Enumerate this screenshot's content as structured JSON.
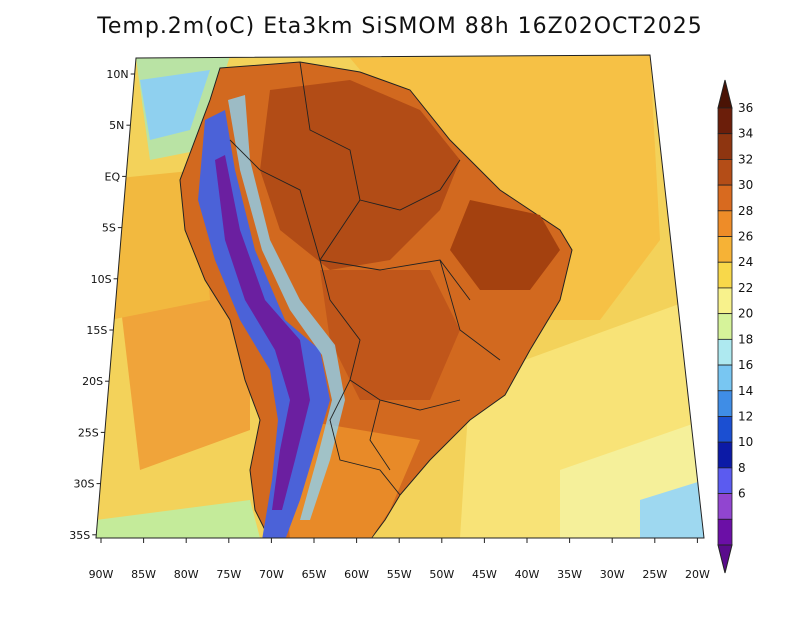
{
  "title": "Temp.2m(oC) Eta3km SiSMOM 88h 16Z02OCT2025",
  "latitude_labels": [
    "10N",
    "5N",
    "EQ",
    "5S",
    "10S",
    "15S",
    "20S",
    "25S",
    "30S",
    "35S"
  ],
  "longitude_labels": [
    "90W",
    "85W",
    "80W",
    "75W",
    "70W",
    "65W",
    "60W",
    "55W",
    "50W",
    "45W",
    "40W",
    "35W",
    "30W",
    "25W",
    "20W"
  ],
  "colorbar": {
    "labels": [
      "36",
      "34",
      "32",
      "30",
      "28",
      "26",
      "24",
      "22",
      "20",
      "18",
      "16",
      "14",
      "12",
      "10",
      "8",
      "6"
    ],
    "colors": [
      "#6b1e0a",
      "#8e3510",
      "#b44d17",
      "#d86a1f",
      "#ee8c28",
      "#f6b236",
      "#f8d84a",
      "#f8f28c",
      "#d6f39a",
      "#aee9f0",
      "#78c6f2",
      "#3f8de6",
      "#1b4fd2",
      "#0c1aa6",
      "#5b5bf0",
      "#9145d0",
      "#6b0fa6"
    ],
    "max_arrow_color": "#4a1305",
    "min_arrow_color": "#5a0c8c"
  },
  "colors": {
    "ocean_north_pacific": "#f3d25a",
    "ocean_south_atlantic": "#f6d24c",
    "ocean_pacific_south": "#f2b13c",
    "land_hot": "#c9621c",
    "land_hottest": "#b04a14",
    "andes_cold": "#4b62d8",
    "andes_coldest": "#6b1fa0",
    "border_line": "#222222"
  }
}
